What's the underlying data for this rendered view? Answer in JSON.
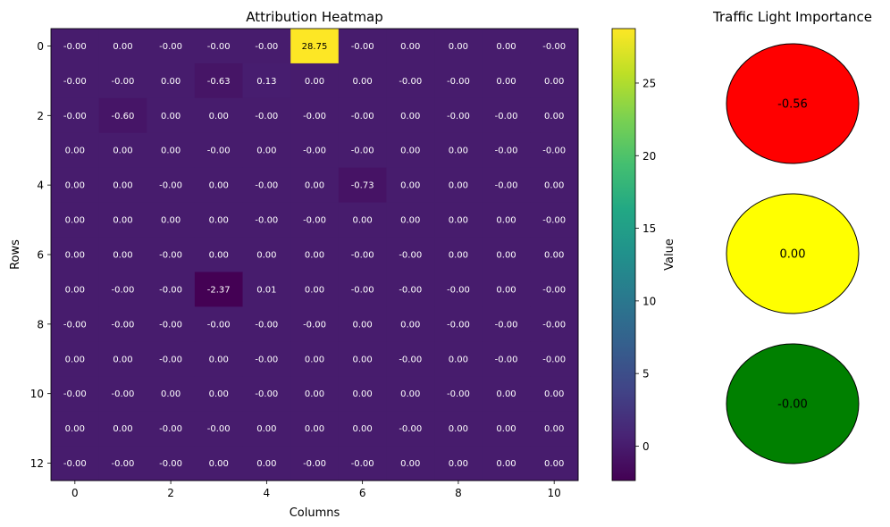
{
  "chart_data": [
    {
      "type": "heatmap",
      "title": "Attribution Heatmap",
      "xlabel": "Columns",
      "ylabel": "Rows",
      "x_ticks": [
        "0",
        "2",
        "4",
        "6",
        "8",
        "10"
      ],
      "y_ticks": [
        "0",
        "2",
        "4",
        "6",
        "8",
        "10",
        "12"
      ],
      "colorbar": {
        "label": "Value",
        "range": [
          -2.37,
          28.75
        ],
        "ticks": [
          "0",
          "5",
          "10",
          "15",
          "20",
          "25"
        ],
        "colormap": "viridis"
      },
      "values": [
        [
          "-0.00",
          "0.00",
          "-0.00",
          "-0.00",
          "-0.00",
          "28.75",
          "-0.00",
          "0.00",
          "0.00",
          "0.00",
          "-0.00"
        ],
        [
          "-0.00",
          "-0.00",
          "0.00",
          "-0.63",
          "0.13",
          "0.00",
          "0.00",
          "-0.00",
          "-0.00",
          "0.00",
          "0.00"
        ],
        [
          "-0.00",
          "-0.60",
          "0.00",
          "0.00",
          "-0.00",
          "-0.00",
          "-0.00",
          "0.00",
          "-0.00",
          "-0.00",
          "0.00"
        ],
        [
          "0.00",
          "0.00",
          "0.00",
          "-0.00",
          "0.00",
          "-0.00",
          "-0.00",
          "0.00",
          "0.00",
          "-0.00",
          "-0.00"
        ],
        [
          "0.00",
          "0.00",
          "-0.00",
          "0.00",
          "-0.00",
          "0.00",
          "-0.73",
          "0.00",
          "0.00",
          "-0.00",
          "0.00"
        ],
        [
          "0.00",
          "0.00",
          "0.00",
          "0.00",
          "-0.00",
          "-0.00",
          "0.00",
          "0.00",
          "0.00",
          "0.00",
          "-0.00"
        ],
        [
          "0.00",
          "0.00",
          "-0.00",
          "0.00",
          "0.00",
          "0.00",
          "-0.00",
          "-0.00",
          "0.00",
          "0.00",
          "0.00"
        ],
        [
          "0.00",
          "-0.00",
          "-0.00",
          "-2.37",
          "0.01",
          "0.00",
          "-0.00",
          "-0.00",
          "-0.00",
          "0.00",
          "-0.00"
        ],
        [
          "-0.00",
          "-0.00",
          "-0.00",
          "-0.00",
          "-0.00",
          "-0.00",
          "0.00",
          "0.00",
          "-0.00",
          "-0.00",
          "-0.00"
        ],
        [
          "0.00",
          "0.00",
          "-0.00",
          "0.00",
          "-0.00",
          "0.00",
          "0.00",
          "-0.00",
          "0.00",
          "-0.00",
          "-0.00"
        ],
        [
          "-0.00",
          "-0.00",
          "0.00",
          "0.00",
          "-0.00",
          "0.00",
          "0.00",
          "0.00",
          "-0.00",
          "0.00",
          "0.00"
        ],
        [
          "0.00",
          "0.00",
          "-0.00",
          "-0.00",
          "0.00",
          "0.00",
          "0.00",
          "-0.00",
          "0.00",
          "0.00",
          "0.00"
        ],
        [
          "-0.00",
          "-0.00",
          "-0.00",
          "0.00",
          "0.00",
          "-0.00",
          "-0.00",
          "0.00",
          "0.00",
          "0.00",
          "0.00"
        ]
      ]
    },
    {
      "type": "other",
      "title": "Traffic Light Importance",
      "lights": [
        {
          "color": "#ff0000",
          "value": "-0.56"
        },
        {
          "color": "#ffff00",
          "value": "0.00"
        },
        {
          "color": "#008000",
          "value": "-0.00"
        }
      ]
    }
  ]
}
